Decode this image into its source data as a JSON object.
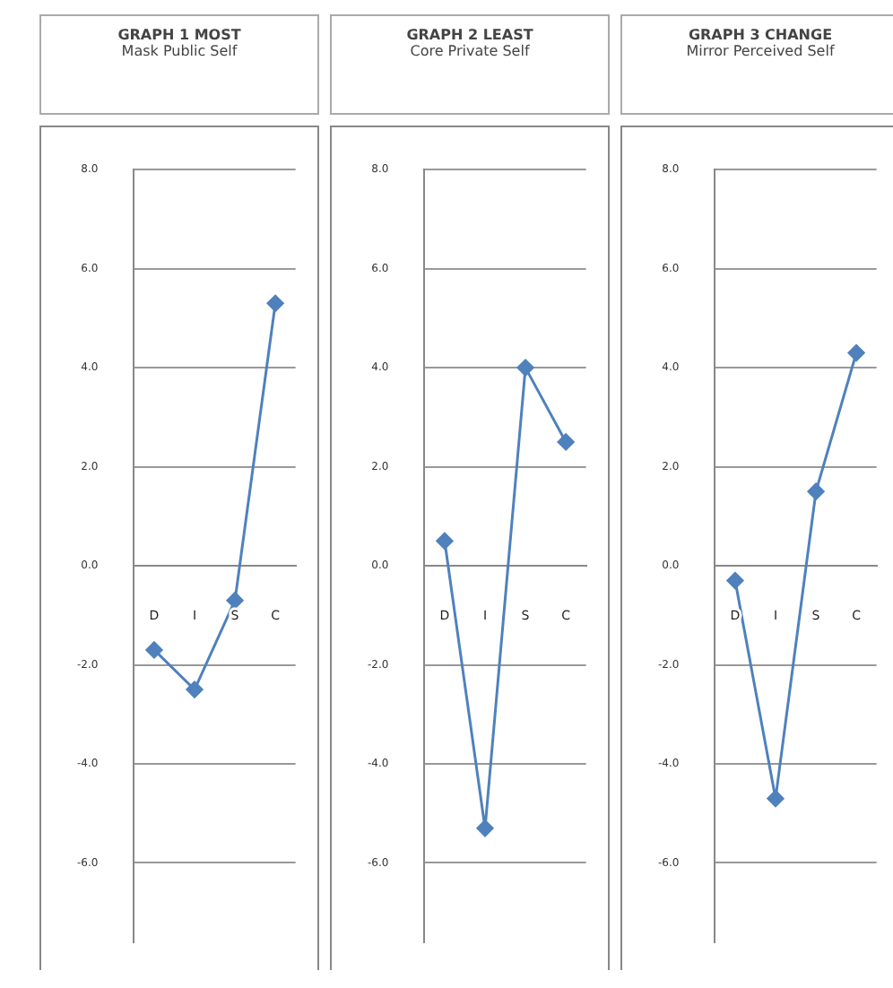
{
  "chart_data": [
    {
      "type": "line",
      "title": "GRAPH 1 MOST",
      "subtitle": "Mask Public Self",
      "categories": [
        "D",
        "I",
        "S",
        "C"
      ],
      "values": [
        -1.7,
        -2.5,
        -0.7,
        5.3
      ],
      "color": "#4f81bd",
      "marker": "diamond",
      "grid": "y",
      "ylim": [
        -7.6,
        8
      ],
      "yticks": [
        {
          "value": -6,
          "label": "-6.0"
        },
        {
          "value": -4,
          "label": "-4.0"
        },
        {
          "value": -2,
          "label": "-2.0"
        },
        {
          "value": 0,
          "label": "0.0"
        },
        {
          "value": 2,
          "label": "2.0"
        },
        {
          "value": 4,
          "label": "4.0"
        },
        {
          "value": 6,
          "label": "6.0"
        },
        {
          "value": 8,
          "label": "8.0"
        }
      ]
    },
    {
      "type": "line",
      "title": "GRAPH 2 LEAST",
      "subtitle": "Core Private Self",
      "categories": [
        "D",
        "I",
        "S",
        "C"
      ],
      "values": [
        0.5,
        -5.3,
        4.0,
        2.5
      ],
      "color": "#4f81bd",
      "marker": "diamond",
      "grid": "y",
      "ylim": [
        -7.6,
        8
      ],
      "yticks": [
        {
          "value": -6,
          "label": "-6.0"
        },
        {
          "value": -4,
          "label": "-4.0"
        },
        {
          "value": -2,
          "label": "-2.0"
        },
        {
          "value": 0,
          "label": "0.0"
        },
        {
          "value": 2,
          "label": "2.0"
        },
        {
          "value": 4,
          "label": "4.0"
        },
        {
          "value": 6,
          "label": "6.0"
        },
        {
          "value": 8,
          "label": "8.0"
        }
      ]
    },
    {
      "type": "line",
      "title": "GRAPH 3 CHANGE",
      "subtitle": "Mirror Perceived Self",
      "categories": [
        "D",
        "I",
        "S",
        "C"
      ],
      "values": [
        -0.3,
        -4.7,
        1.5,
        4.3
      ],
      "color": "#4f81bd",
      "marker": "diamond",
      "grid": "y",
      "ylim": [
        -7.6,
        8
      ],
      "yticks": [
        {
          "value": -6,
          "label": "-6.0"
        },
        {
          "value": -4,
          "label": "-4.0"
        },
        {
          "value": -2,
          "label": "-2.0"
        },
        {
          "value": 0,
          "label": "0.0"
        },
        {
          "value": 2,
          "label": "2.0"
        },
        {
          "value": 4,
          "label": "4.0"
        },
        {
          "value": 6,
          "label": "6.0"
        },
        {
          "value": 8,
          "label": "8.0"
        }
      ]
    }
  ]
}
